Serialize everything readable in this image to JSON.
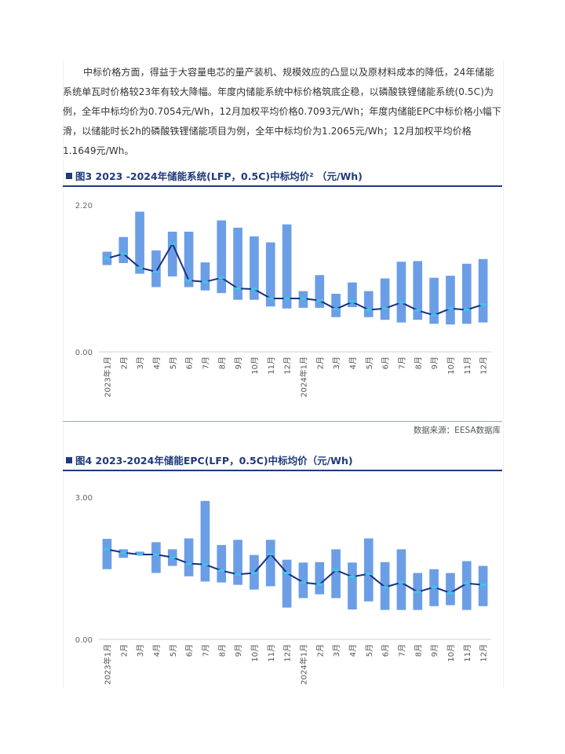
{
  "paragraph": "中标价格方面，得益于大容量电芯的量产装机、规模效应的凸显以及原材料成本的降低，24年储能系统单瓦时价格较23年有较大降幅。年度内储能系统中标价格筑底企稳，以磷酸铁锂储能系统(0.5C)为例，全年中标均价为0.7054元/Wh，12月加权平均价格0.7093元/Wh；年度内储能EPC中标价格小幅下滑，以储能时长2h的磷酸铁锂储能项目为例，全年中标均价为1.2065元/Wh；12月加权平均价格1.1649元/Wh。",
  "figure3": {
    "title": "图3 2023 -2024年储能系统(LFP，0.5C)中标均价² （元/Wh)"
  },
  "source": "数据来源：EESA数据库",
  "figure4": {
    "title": "图4 2023-2024年储能EPC(LFP，0.5C)中标均价（元/Wh)"
  },
  "colors": {
    "bar": "#6b9ee6",
    "line": "#1a2f80",
    "marker": "#3fc6e8",
    "axis": "#d0d0d0",
    "title": "#1f3a7a"
  },
  "chart_data": [
    {
      "type": "bar",
      "subtype": "range-bar-with-line",
      "categories": [
        "2023年1月",
        "2月",
        "3月",
        "4月",
        "5月",
        "6月",
        "7月",
        "8月",
        "9月",
        "10月",
        "11月",
        "12月",
        "2024年1月",
        "2月",
        "3月",
        "4月",
        "5月",
        "6月",
        "7月",
        "8月",
        "9月",
        "10月",
        "11月",
        "12月"
      ],
      "ytick_labels": [
        "2.20",
        "0.00"
      ],
      "ylim": [
        0,
        2.2
      ],
      "series": [
        {
          "low": [
            1.3,
            1.33,
            1.17,
            0.97,
            1.13,
            0.97,
            0.92,
            0.88,
            0.78,
            0.78,
            0.68,
            0.65,
            0.66,
            0.66,
            0.52,
            0.67,
            0.52,
            0.48,
            0.44,
            0.48,
            0.42,
            0.41,
            0.42,
            0.44
          ],
          "high": [
            1.5,
            1.72,
            2.1,
            1.52,
            1.8,
            1.8,
            1.34,
            1.97,
            1.86,
            1.73,
            1.64,
            1.91,
            0.91,
            1.15,
            0.87,
            1.04,
            0.91,
            1.1,
            1.35,
            1.36,
            1.11,
            1.14,
            1.32,
            1.39
          ]
        },
        {
          "values": [
            1.4,
            1.47,
            1.26,
            1.2,
            1.62,
            1.07,
            1.05,
            1.11,
            0.95,
            0.94,
            0.8,
            0.8,
            0.8,
            0.77,
            0.64,
            0.75,
            0.63,
            0.65,
            0.74,
            0.62,
            0.55,
            0.65,
            0.63,
            0.71
          ]
        }
      ],
      "grid": false,
      "legend": "none"
    },
    {
      "type": "bar",
      "subtype": "range-bar-with-line",
      "categories": [
        "2023年1月",
        "2月",
        "3月",
        "4月",
        "5月",
        "6月",
        "7月",
        "8月",
        "9月",
        "10月",
        "11月",
        "12月",
        "2024年1月",
        "2月",
        "3月",
        "4月",
        "5月",
        "6月",
        "7月",
        "8月",
        "9月",
        "10月",
        "11月",
        "12月"
      ],
      "ytick_labels": [
        "3.00",
        "0.00"
      ],
      "ylim": [
        0,
        3.0
      ],
      "series": [
        {
          "low": [
            1.48,
            1.72,
            1.78,
            1.4,
            1.55,
            1.33,
            1.22,
            1.2,
            1.15,
            1.05,
            1.12,
            0.67,
            0.87,
            0.95,
            0.87,
            0.63,
            0.8,
            0.62,
            0.62,
            0.62,
            0.7,
            0.72,
            0.62,
            0.7
          ],
          "high": [
            2.12,
            1.9,
            1.85,
            2.05,
            1.9,
            2.13,
            2.92,
            1.99,
            2.1,
            1.78,
            2.1,
            1.68,
            1.62,
            1.63,
            1.9,
            1.62,
            2.13,
            1.63,
            1.9,
            1.4,
            1.48,
            1.4,
            1.65,
            1.55
          ]
        },
        {
          "values": [
            1.9,
            1.83,
            1.79,
            1.79,
            1.73,
            1.6,
            1.58,
            1.45,
            1.37,
            1.4,
            1.8,
            1.4,
            1.2,
            1.16,
            1.46,
            1.32,
            1.38,
            1.1,
            1.2,
            1.0,
            1.1,
            0.98,
            1.18,
            1.15
          ]
        }
      ],
      "grid": false,
      "legend": "none"
    }
  ]
}
